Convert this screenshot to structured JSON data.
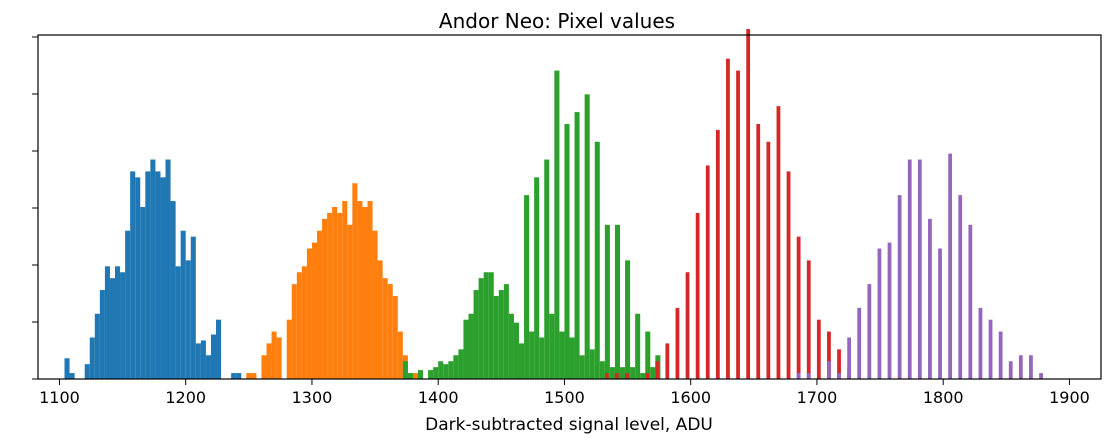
{
  "chart_data": {
    "type": "bar",
    "title": "Andor Neo: Pixel values",
    "xlabel": "Dark-subtracted signal level, ADU",
    "ylabel": "",
    "xlim": [
      1083,
      1925
    ],
    "ylim": [
      0,
      58
    ],
    "xticks": [
      1100,
      1200,
      1300,
      1400,
      1500,
      1600,
      1700,
      1800,
      1900
    ],
    "yticks_count": 7,
    "grid": false,
    "legend": "none",
    "series": [
      {
        "color": "#1f77b4",
        "bin_width": 4,
        "bars": [
          [
            1104,
            3.5
          ],
          [
            1108,
            1
          ],
          [
            1120,
            2.5
          ],
          [
            1124,
            7
          ],
          [
            1128,
            11
          ],
          [
            1132,
            15
          ],
          [
            1136,
            19
          ],
          [
            1140,
            17
          ],
          [
            1144,
            19
          ],
          [
            1148,
            18
          ],
          [
            1152,
            25
          ],
          [
            1156,
            35
          ],
          [
            1160,
            34
          ],
          [
            1164,
            29
          ],
          [
            1168,
            35
          ],
          [
            1172,
            37
          ],
          [
            1176,
            35
          ],
          [
            1180,
            34
          ],
          [
            1184,
            37
          ],
          [
            1188,
            30
          ],
          [
            1192,
            19
          ],
          [
            1196,
            25
          ],
          [
            1200,
            20
          ],
          [
            1204,
            24
          ],
          [
            1208,
            6
          ],
          [
            1212,
            6.5
          ],
          [
            1216,
            4
          ],
          [
            1220,
            7.5
          ],
          [
            1224,
            10
          ],
          [
            1236,
            1
          ],
          [
            1240,
            1
          ]
        ]
      },
      {
        "color": "#ff7f0e",
        "bin_width": 4,
        "bars": [
          [
            1248,
            1
          ],
          [
            1252,
            1
          ],
          [
            1260,
            4
          ],
          [
            1264,
            6
          ],
          [
            1268,
            8
          ],
          [
            1272,
            7
          ],
          [
            1280,
            10
          ],
          [
            1284,
            16
          ],
          [
            1288,
            18
          ],
          [
            1292,
            19
          ],
          [
            1296,
            22
          ],
          [
            1300,
            23
          ],
          [
            1304,
            25
          ],
          [
            1308,
            27
          ],
          [
            1312,
            28
          ],
          [
            1316,
            29
          ],
          [
            1320,
            28
          ],
          [
            1324,
            30
          ],
          [
            1328,
            26
          ],
          [
            1332,
            33
          ],
          [
            1336,
            30
          ],
          [
            1340,
            29
          ],
          [
            1344,
            30
          ],
          [
            1348,
            25
          ],
          [
            1352,
            20
          ],
          [
            1356,
            17
          ],
          [
            1360,
            16
          ],
          [
            1364,
            14
          ],
          [
            1368,
            8
          ],
          [
            1372,
            4
          ],
          [
            1376,
            1
          ],
          [
            1380,
            1
          ]
        ]
      },
      {
        "color": "#2ca02c",
        "bin_width": 4,
        "bars": [
          [
            1372,
            3
          ],
          [
            1376,
            1
          ],
          [
            1384,
            1.5
          ],
          [
            1392,
            1.5
          ],
          [
            1396,
            2
          ],
          [
            1400,
            3
          ],
          [
            1404,
            2.5
          ],
          [
            1408,
            3
          ],
          [
            1412,
            4
          ],
          [
            1416,
            5
          ],
          [
            1420,
            10
          ],
          [
            1424,
            11
          ],
          [
            1428,
            15
          ],
          [
            1432,
            17
          ],
          [
            1436,
            18
          ],
          [
            1440,
            18
          ],
          [
            1444,
            14
          ],
          [
            1448,
            15
          ],
          [
            1452,
            16
          ],
          [
            1456,
            11
          ],
          [
            1460,
            9.5
          ],
          [
            1464,
            6
          ],
          [
            1468,
            31
          ],
          [
            1472,
            8
          ],
          [
            1476,
            34
          ],
          [
            1480,
            7
          ],
          [
            1484,
            37
          ],
          [
            1488,
            11
          ],
          [
            1492,
            52
          ],
          [
            1496,
            8
          ],
          [
            1500,
            43
          ],
          [
            1504,
            7
          ],
          [
            1508,
            45
          ],
          [
            1512,
            4
          ],
          [
            1516,
            48
          ],
          [
            1520,
            5
          ],
          [
            1524,
            40
          ],
          [
            1528,
            3
          ],
          [
            1532,
            26
          ],
          [
            1536,
            2
          ],
          [
            1540,
            26
          ],
          [
            1544,
            2
          ],
          [
            1548,
            20
          ],
          [
            1552,
            2
          ],
          [
            1556,
            11
          ],
          [
            1560,
            1
          ],
          [
            1564,
            8
          ],
          [
            1568,
            2
          ],
          [
            1572,
            4
          ]
        ]
      },
      {
        "color": "#d62728",
        "bin_width": 3,
        "bars": [
          [
            1532,
            1
          ],
          [
            1540,
            1
          ],
          [
            1548,
            1
          ],
          [
            1564,
            1
          ],
          [
            1572,
            3
          ],
          [
            1580,
            6
          ],
          [
            1588,
            12
          ],
          [
            1596,
            18
          ],
          [
            1604,
            28
          ],
          [
            1612,
            36
          ],
          [
            1620,
            42
          ],
          [
            1628,
            54
          ],
          [
            1636,
            52
          ],
          [
            1644,
            59
          ],
          [
            1652,
            43
          ],
          [
            1660,
            40
          ],
          [
            1668,
            46
          ],
          [
            1676,
            35
          ],
          [
            1684,
            24
          ],
          [
            1692,
            20
          ],
          [
            1700,
            10
          ],
          [
            1708,
            8
          ],
          [
            1716,
            5
          ],
          [
            1724,
            2
          ]
        ]
      },
      {
        "color": "#9467bd",
        "bin_width": 3,
        "bars": [
          [
            1684,
            1
          ],
          [
            1692,
            1
          ],
          [
            1708,
            3
          ],
          [
            1716,
            1
          ],
          [
            1724,
            7
          ],
          [
            1732,
            12
          ],
          [
            1740,
            16
          ],
          [
            1748,
            22
          ],
          [
            1756,
            23
          ],
          [
            1764,
            31
          ],
          [
            1772,
            37
          ],
          [
            1780,
            37
          ],
          [
            1788,
            27
          ],
          [
            1796,
            22
          ],
          [
            1804,
            38
          ],
          [
            1812,
            31
          ],
          [
            1820,
            26
          ],
          [
            1828,
            12
          ],
          [
            1836,
            10
          ],
          [
            1844,
            8
          ],
          [
            1852,
            3
          ],
          [
            1860,
            4
          ],
          [
            1868,
            4
          ],
          [
            1876,
            1
          ]
        ]
      }
    ]
  }
}
